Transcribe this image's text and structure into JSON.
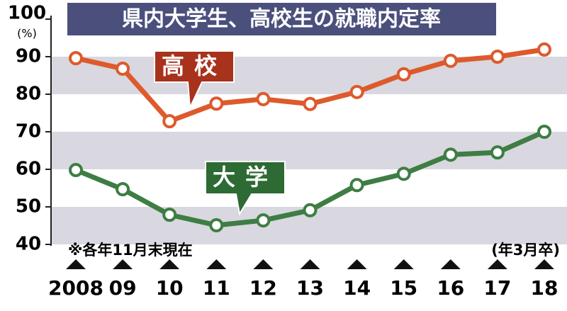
{
  "chart_data": {
    "type": "line",
    "title": "県内大学生、高校生の就職内定率",
    "y_unit": "(%)",
    "note": "※各年11月末現在",
    "x_note": "(年3月卒)",
    "categories": [
      "2008",
      "09",
      "10",
      "11",
      "12",
      "13",
      "14",
      "15",
      "16",
      "17",
      "18"
    ],
    "series": [
      {
        "name": "高校",
        "color": "#dd5a2c",
        "values": [
          89.6,
          86.8,
          72.8,
          77.5,
          78.7,
          77.4,
          80.6,
          85.3,
          88.9,
          90.0,
          91.9
        ]
      },
      {
        "name": "大学",
        "color": "#3e7d43",
        "values": [
          59.8,
          54.7,
          47.9,
          45.1,
          46.4,
          49.1,
          55.8,
          58.8,
          63.9,
          64.5,
          70.0
        ]
      }
    ],
    "ylim": [
      40,
      100
    ],
    "yticks": [
      40,
      50,
      60,
      70,
      80,
      90,
      100
    ],
    "bands": true
  }
}
